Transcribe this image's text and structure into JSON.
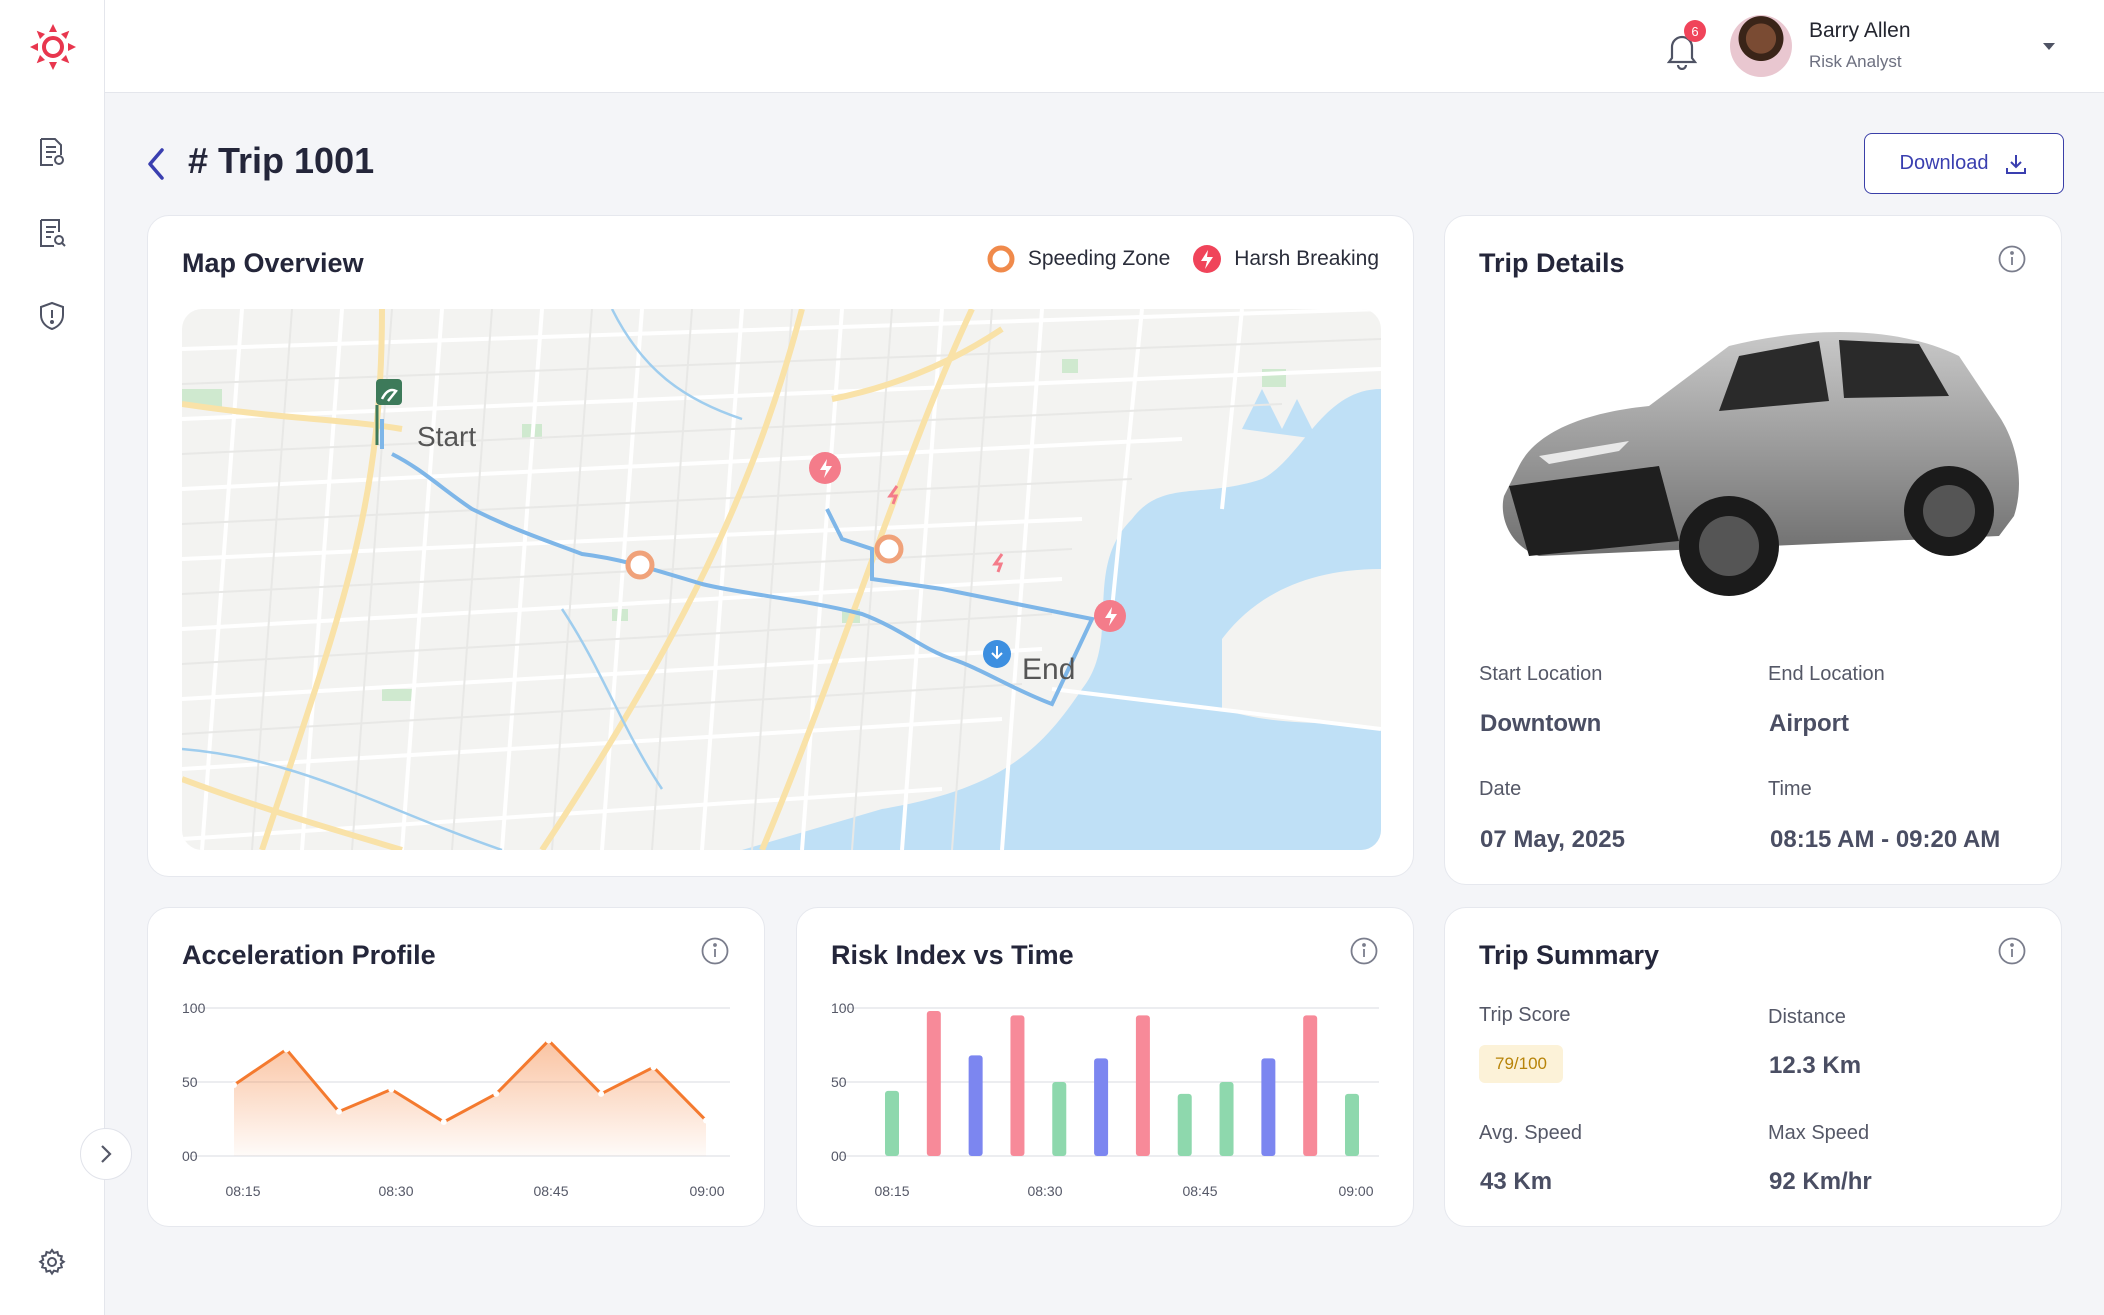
{
  "header": {
    "notification_count": "6",
    "user_name": "Barry Allen",
    "user_role": "Risk Analyst"
  },
  "page": {
    "title": "# Trip 1001",
    "download_label": "Download"
  },
  "map": {
    "title": "Map Overview",
    "legend": {
      "speeding": "Speeding Zone",
      "harsh": "Harsh Breaking"
    },
    "start_label": "Start",
    "end_label": "End"
  },
  "trip_details": {
    "title": "Trip Details",
    "start_location_label": "Start Location",
    "start_location": "Downtown",
    "end_location_label": "End Location",
    "end_location": "Airport",
    "date_label": "Date",
    "date": "07 May, 2025",
    "time_label": "Time",
    "time": "08:15 AM - 09:20 AM"
  },
  "acceleration": {
    "title": "Acceleration Profile"
  },
  "risk": {
    "title": "Risk Index vs Time"
  },
  "summary": {
    "title": "Trip Summary",
    "score_label": "Trip Score",
    "score": "79/100",
    "distance_label": "Distance",
    "distance": "12.3 Km",
    "avg_speed_label": "Avg. Speed",
    "avg_speed": "43 Km",
    "max_speed_label": "Max Speed",
    "max_speed": "92 Km/hr"
  },
  "colors": {
    "accent": "#3a3fb0",
    "speeding": "#f08a4b",
    "harsh": "#f0445a",
    "route": "#7eb6e8",
    "area_line": "#f47a2f",
    "bar_pink": "#f78a99",
    "bar_blue": "#7c86f0",
    "bar_green": "#8ed8ad"
  },
  "chart_data": [
    {
      "type": "area",
      "title": "Acceleration Profile",
      "x_ticks": [
        "08:15",
        "08:30",
        "08:45",
        "09:00"
      ],
      "y_ticks": [
        "100",
        "50",
        "00"
      ],
      "ylim": [
        0,
        100
      ],
      "values": [
        48,
        72,
        30,
        45,
        23,
        42,
        78,
        42,
        60,
        24
      ]
    },
    {
      "type": "bar",
      "title": "Risk Index vs Time",
      "x_ticks": [
        "08:15",
        "08:30",
        "08:45",
        "09:00"
      ],
      "y_ticks": [
        "100",
        "50",
        "00"
      ],
      "ylim": [
        0,
        100
      ],
      "values": [
        44,
        98,
        68,
        95,
        50,
        66,
        95,
        42,
        50,
        66,
        95,
        42
      ],
      "bar_colors": [
        "green",
        "pink",
        "blue",
        "pink",
        "green",
        "blue",
        "pink",
        "green",
        "green",
        "blue",
        "pink",
        "green"
      ]
    }
  ]
}
